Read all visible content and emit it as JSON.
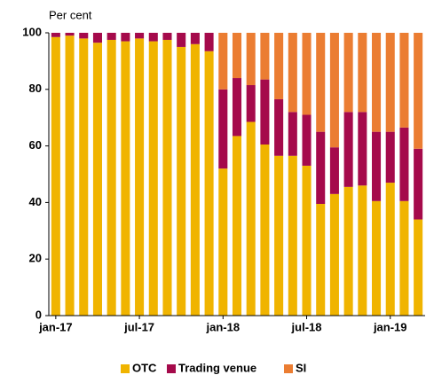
{
  "chart_data": {
    "type": "stacked_bar",
    "ylabel": "Per cent",
    "categories": [
      "jan-17",
      null,
      null,
      null,
      null,
      null,
      "jul-17",
      null,
      null,
      null,
      null,
      null,
      "jan-18",
      null,
      null,
      null,
      null,
      null,
      "jul-18",
      null,
      null,
      null,
      null,
      null,
      "jan-19",
      null,
      null
    ],
    "series": [
      {
        "name": "OTC",
        "color": "#f0b400",
        "values": [
          98.5,
          99,
          98,
          96.5,
          97.5,
          97,
          98,
          97,
          97.5,
          95,
          96,
          93.5,
          52,
          63.5,
          68.5,
          60.5,
          56.5,
          56.5,
          53,
          39.5,
          43,
          45.5,
          46,
          40.5,
          47,
          40.5,
          34
        ]
      },
      {
        "name": "Trading venue",
        "color": "#a50a4b",
        "values": [
          1.5,
          1,
          2,
          3.5,
          2.5,
          3,
          2,
          3,
          2.5,
          5,
          4,
          6.5,
          28,
          20.5,
          13,
          23,
          20,
          15.5,
          18,
          25.5,
          16.5,
          26.5,
          26,
          24.5,
          18,
          26,
          25
        ]
      },
      {
        "name": "SI",
        "color": "#eb7d32",
        "values": [
          0,
          0,
          0,
          0,
          0,
          0,
          0,
          0,
          0,
          0,
          0,
          0,
          20,
          16,
          18.5,
          16.5,
          23.5,
          28,
          29,
          35,
          40.5,
          28,
          28,
          35,
          35,
          33.5,
          41
        ]
      }
    ],
    "ylim": [
      0,
      100
    ],
    "yticks": [
      0,
      20,
      40,
      60,
      80,
      100
    ],
    "grid": false
  }
}
